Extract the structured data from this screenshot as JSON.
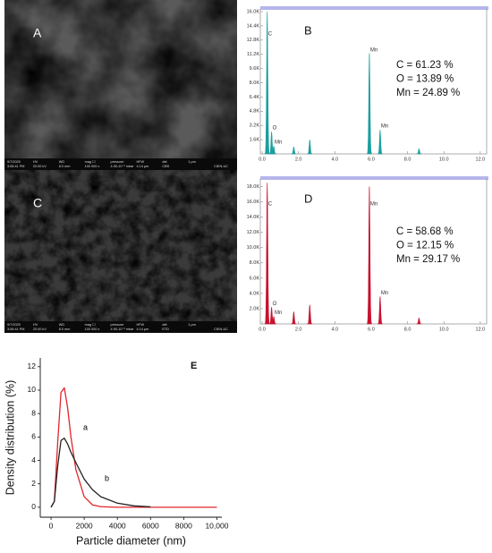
{
  "sem_images": [
    {
      "label": "A",
      "info_headers": [
        "9/7/2025",
        "HV",
        "WD",
        "mag ☐",
        "pressure",
        "HFW",
        "det",
        "1 μm",
        ""
      ],
      "info_values": [
        "3:08:41 PM",
        "20.00 kV",
        "8.0 mm",
        "100 000 x",
        "4.90-10⁻³ mbar",
        "4.14 μm",
        "CBS",
        "",
        "CIEN-UC"
      ]
    },
    {
      "label": "C",
      "info_headers": [
        "9/7/2025",
        "HV",
        "WD",
        "mag ☐",
        "pressure",
        "HFW",
        "det",
        "1 μm",
        ""
      ],
      "info_values": [
        "3:08:41 PM",
        "20.00 kV",
        "8.0 mm",
        "100 000 x",
        "4.90-10⁻³ mbar",
        "4.14 μm",
        "ETD",
        "",
        "CIEN-UC"
      ]
    }
  ],
  "chart_data": [
    {
      "type": "spectrum",
      "label": "B",
      "color": "#1a9e9e",
      "annotations": [
        "C =  61.23 %",
        "O = 13.89 %",
        "Mn = 24.89 %"
      ],
      "x": [
        0.28,
        0.52,
        0.64,
        1.74,
        2.62,
        5.9,
        6.49,
        8.63
      ],
      "values": [
        16000,
        2500,
        900,
        800,
        1600,
        11300,
        2700,
        600
      ],
      "peak_labels": [
        "C",
        "O",
        "Mn",
        null,
        null,
        "Mn",
        "Mn",
        null
      ],
      "xlim": [
        -0.1,
        12.35
      ],
      "ylim": [
        0,
        16300
      ],
      "xticks": [
        {
          "value": 0,
          "label": "0.0"
        },
        {
          "value": 2,
          "label": "2.0"
        },
        {
          "value": 4,
          "label": "4.0"
        },
        {
          "value": 6,
          "label": "6.0"
        },
        {
          "value": 8,
          "label": "8.0"
        },
        {
          "value": 10,
          "label": "10.0"
        },
        {
          "value": 12,
          "label": "12.0"
        }
      ],
      "yticks": [
        {
          "value": 1600,
          "label": "1.6K"
        },
        {
          "value": 3200,
          "label": "3.2K"
        },
        {
          "value": 4800,
          "label": "4.8K"
        },
        {
          "value": 6400,
          "label": "6.4K"
        },
        {
          "value": 8000,
          "label": "8.0K"
        },
        {
          "value": 9600,
          "label": "9.6K"
        },
        {
          "value": 11200,
          "label": "11.2K"
        },
        {
          "value": 12800,
          "label": "12.8K"
        },
        {
          "value": 14400,
          "label": "14.4K"
        },
        {
          "value": 16000,
          "label": "16.0K"
        }
      ]
    },
    {
      "type": "spectrum",
      "label": "D",
      "color": "#c8102e",
      "annotations": [
        "C = 58.68 %",
        "O = 12.15 %",
        "Mn = 29.17 %"
      ],
      "x": [
        0.28,
        0.52,
        0.64,
        1.74,
        2.62,
        5.9,
        6.49,
        8.63
      ],
      "values": [
        18500,
        2200,
        1000,
        1600,
        2500,
        18000,
        3600,
        800
      ],
      "peak_labels": [
        "C",
        "O",
        "Mn",
        null,
        null,
        "Mn",
        "Mn",
        null
      ],
      "xlim": [
        -0.1,
        12.35
      ],
      "ylim": [
        0,
        19000
      ],
      "xticks": [
        {
          "value": 0,
          "label": "0.0"
        },
        {
          "value": 2,
          "label": "2.0"
        },
        {
          "value": 4,
          "label": "4.0"
        },
        {
          "value": 6,
          "label": "6.0"
        },
        {
          "value": 8,
          "label": "8.0"
        },
        {
          "value": 10,
          "label": "10.0"
        },
        {
          "value": 12,
          "label": "12.0"
        }
      ],
      "yticks": [
        {
          "value": 2000,
          "label": "2.0K"
        },
        {
          "value": 4000,
          "label": "4.0K"
        },
        {
          "value": 6000,
          "label": "6.0K"
        },
        {
          "value": 8000,
          "label": "8.0K"
        },
        {
          "value": 10000,
          "label": "10.0K"
        },
        {
          "value": 12000,
          "label": "12.0K"
        },
        {
          "value": 14000,
          "label": "14.0K"
        },
        {
          "value": 16000,
          "label": "16.0K"
        },
        {
          "value": 18000,
          "label": "18.0K"
        }
      ]
    },
    {
      "type": "line",
      "label": "E",
      "xlabel": "Particle diameter (nm)",
      "ylabel": "Density distribution (%)",
      "x": [
        0,
        200,
        400,
        600,
        800,
        1000,
        1200,
        1500,
        2000,
        2500,
        3000,
        4000,
        5000,
        6000,
        8000,
        10000
      ],
      "series": [
        {
          "name": "a",
          "color": "#e0262b",
          "values": [
            0,
            0.5,
            5.5,
            9.8,
            10.2,
            8.5,
            6.0,
            3.2,
            0.9,
            0.2,
            0.05,
            0,
            0,
            0,
            0,
            0
          ]
        },
        {
          "name": "b",
          "color": "#222222",
          "values": [
            0,
            0.5,
            3.5,
            5.7,
            5.9,
            5.4,
            4.7,
            3.8,
            2.4,
            1.5,
            0.9,
            0.35,
            0.12,
            0.04,
            null,
            null
          ]
        }
      ],
      "xlim": [
        -650,
        10300
      ],
      "ylim": [
        -0.85,
        12.75
      ],
      "xticks": [
        0,
        2000,
        4000,
        6000,
        8000,
        {
          "value": 10000,
          "label": "10,000"
        }
      ],
      "yticks": [
        0,
        2,
        4,
        6,
        8,
        10,
        12
      ]
    }
  ]
}
